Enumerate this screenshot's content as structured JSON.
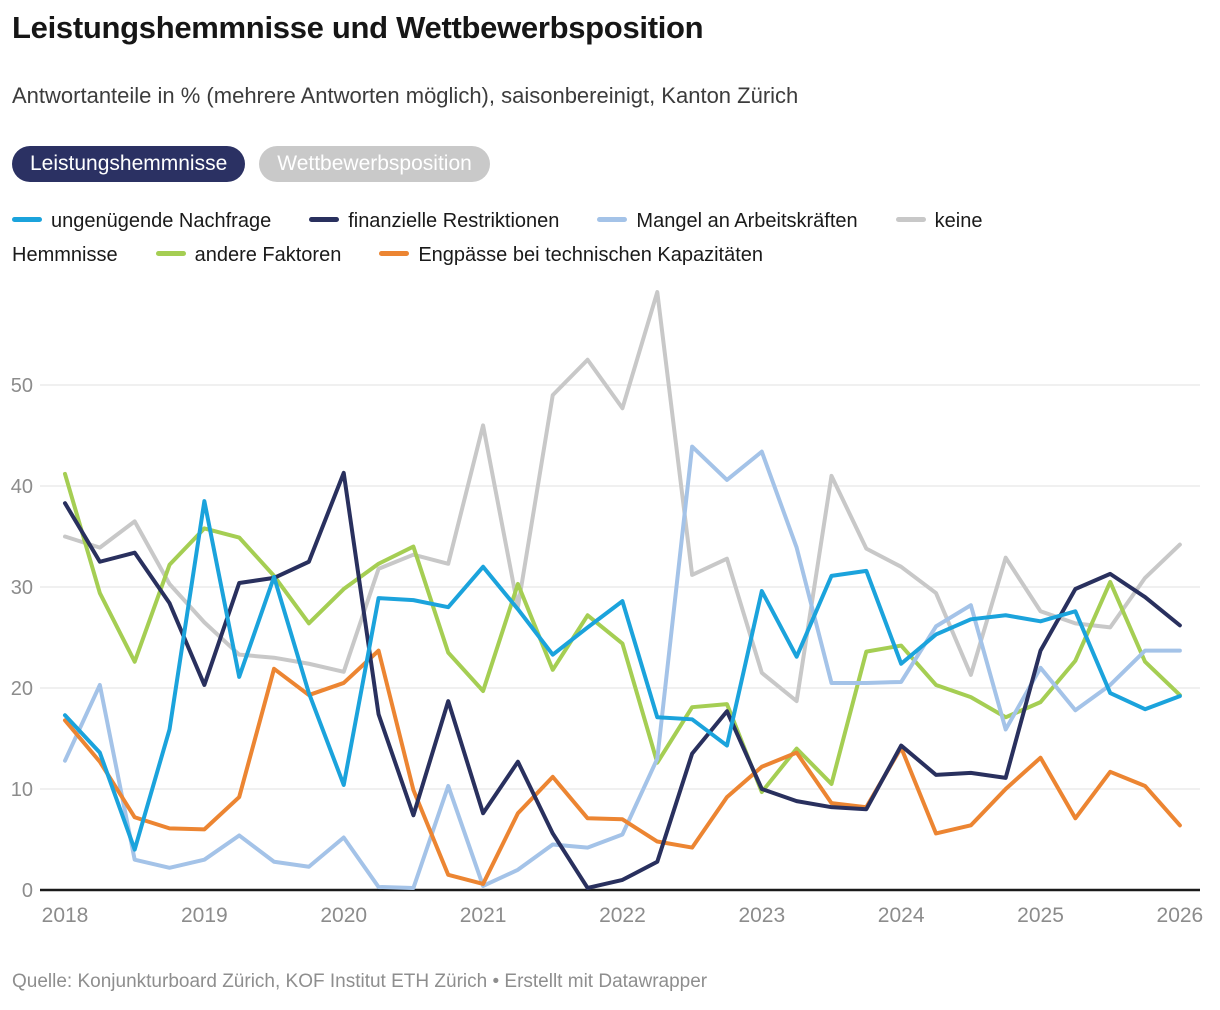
{
  "header": {
    "title": "Leistungshemmnisse und Wettbewerbsposition",
    "subtitle": "Antwortanteile in % (mehrere Antworten möglich), saisonbereinigt, Kanton Zürich"
  },
  "tabs": [
    {
      "label": "Leistungshemmnisse",
      "active": true
    },
    {
      "label": "Wettbewerbsposition",
      "active": false
    }
  ],
  "colors": {
    "tab_active_bg": "#2b3163",
    "tab_inactive_bg": "#c9c9c9",
    "gridline": "#e2e2e2",
    "axis_line": "#1a1a1a",
    "tick_label": "#8c8c8c"
  },
  "chart_data": {
    "type": "line",
    "title": "Leistungshemmnisse und Wettbewerbsposition",
    "subtitle_note": "Antwortanteile in % (mehrere Antworten möglich), saisonbereinigt, Kanton Zürich",
    "x": [
      "2018 Q1",
      "2018 Q2",
      "2018 Q3",
      "2018 Q4",
      "2019 Q1",
      "2019 Q2",
      "2019 Q3",
      "2019 Q4",
      "2020 Q1",
      "2020 Q2",
      "2020 Q3",
      "2020 Q4",
      "2021 Q1",
      "2021 Q2",
      "2021 Q3",
      "2021 Q4",
      "2022 Q1",
      "2022 Q2",
      "2022 Q3",
      "2022 Q4",
      "2023 Q1",
      "2023 Q2",
      "2023 Q3",
      "2023 Q4",
      "2024 Q1",
      "2024 Q2",
      "2024 Q3",
      "2024 Q4",
      "2025 Q1",
      "2025 Q2",
      "2025 Q3",
      "2025 Q4",
      "2026 Q1"
    ],
    "x_tick_years": [
      "2018",
      "2019",
      "2020",
      "2021",
      "2022",
      "2023",
      "2024",
      "2025",
      "2026"
    ],
    "y_ticks": [
      0,
      10,
      20,
      30,
      40,
      50
    ],
    "ylim": [
      0,
      60.5
    ],
    "grid": "horizontal",
    "legend_position": "top",
    "series": [
      {
        "name": "ungenügende Nachfrage",
        "color": "#1ba3dc",
        "values": [
          17.3,
          13.6,
          4.0,
          15.9,
          38.5,
          21.1,
          31.0,
          19.5,
          10.4,
          28.9,
          28.7,
          28.0,
          32.0,
          27.8,
          23.3,
          26.0,
          28.6,
          17.1,
          16.9,
          14.3,
          29.6,
          23.1,
          31.1,
          31.6,
          22.4,
          25.3,
          26.8,
          27.2,
          26.6,
          27.6,
          19.5,
          17.9,
          19.2
        ]
      },
      {
        "name": "finanzielle Restriktionen",
        "color": "#29305e",
        "values": [
          38.3,
          32.5,
          33.4,
          28.4,
          20.3,
          30.4,
          30.9,
          32.5,
          41.3,
          17.4,
          7.4,
          18.7,
          7.6,
          12.7,
          5.6,
          0.2,
          1.0,
          2.8,
          13.5,
          17.7,
          10.0,
          8.8,
          8.2,
          8.0,
          14.3,
          11.4,
          11.6,
          11.1,
          23.7,
          29.8,
          31.3,
          29.0,
          26.2
        ]
      },
      {
        "name": "Mangel an Arbeitskräften",
        "color": "#a4c3e8",
        "values": [
          12.8,
          20.3,
          3.0,
          2.2,
          3.0,
          5.4,
          2.8,
          2.3,
          5.2,
          0.3,
          0.2,
          10.3,
          0.4,
          2.0,
          4.5,
          4.2,
          5.5,
          13.0,
          43.9,
          40.6,
          43.4,
          33.9,
          20.5,
          20.5,
          20.6,
          26.1,
          28.2,
          15.9,
          22.0,
          17.8,
          20.3,
          23.7,
          23.7
        ]
      },
      {
        "name": "keine Hemmnisse",
        "color": "#c8c8c8",
        "values": [
          35.0,
          33.9,
          36.5,
          30.3,
          26.5,
          23.3,
          23.0,
          22.4,
          21.6,
          31.8,
          33.2,
          32.3,
          46.0,
          28.0,
          49.0,
          52.5,
          47.7,
          59.2,
          31.2,
          32.8,
          21.5,
          18.7,
          41.0,
          33.8,
          32.0,
          29.4,
          21.3,
          32.9,
          27.6,
          26.4,
          26.0,
          30.9,
          34.2
        ]
      },
      {
        "name": "andere Faktoren",
        "color": "#a5ce53",
        "values": [
          41.2,
          29.4,
          22.6,
          32.2,
          35.8,
          34.9,
          31.1,
          26.4,
          29.8,
          32.3,
          34.0,
          23.5,
          19.7,
          30.3,
          21.8,
          27.2,
          24.4,
          12.6,
          18.1,
          18.4,
          9.7,
          14.0,
          10.5,
          23.6,
          24.2,
          20.3,
          19.1,
          17.1,
          18.6,
          22.7,
          30.5,
          22.6,
          19.3
        ]
      },
      {
        "name": "Engpässe bei technischen Kapazitäten",
        "color": "#ec8532",
        "values": [
          16.8,
          12.7,
          7.2,
          6.1,
          6.0,
          9.2,
          21.9,
          19.3,
          20.5,
          23.7,
          9.9,
          1.5,
          0.6,
          7.6,
          11.2,
          7.1,
          7.0,
          4.8,
          4.2,
          9.2,
          12.2,
          13.6,
          8.6,
          8.2,
          14.1,
          5.6,
          6.4,
          10.0,
          13.1,
          7.1,
          11.7,
          10.3,
          6.4
        ]
      }
    ]
  },
  "footer": {
    "source": "Quelle: Konjunkturboard Zürich, KOF Institut ETH Zürich • Erstellt mit Datawrapper"
  }
}
